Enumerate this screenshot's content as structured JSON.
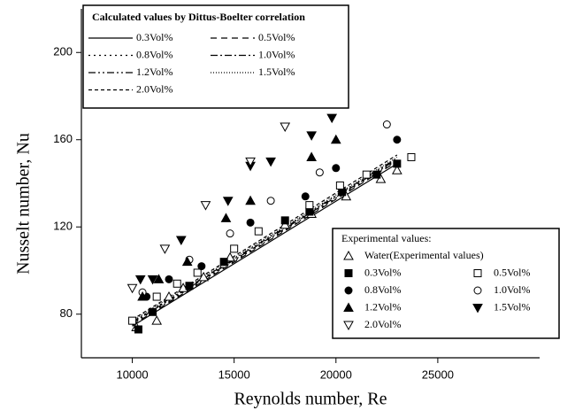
{
  "chart_data": {
    "type": "scatter",
    "x_label": "Reynolds number, Re",
    "y_label": "Nusselt number, Nu",
    "line_legend_title": "Calculated values by Dittus-Boelter correlation",
    "scatter_legend_title": "Experimental values:",
    "xlim": [
      7500,
      30000
    ],
    "ylim": [
      60,
      220
    ],
    "xticks": [
      10000,
      15000,
      20000,
      25000
    ],
    "yticks": [
      80,
      120,
      160,
      200
    ],
    "color": "#000000",
    "series": [
      {
        "name": "0.3Vol%",
        "kind": "line",
        "line_style": "solid",
        "x": [
          10000,
          23000
        ],
        "values": [
          74.5,
          149
        ]
      },
      {
        "name": "0.5Vol%",
        "kind": "line",
        "line_style": "dashed",
        "x": [
          10000,
          23000
        ],
        "values": [
          75,
          150
        ]
      },
      {
        "name": "0.8Vol%",
        "kind": "line",
        "line_style": "dotted",
        "x": [
          10000,
          23000
        ],
        "values": [
          75.5,
          150.5
        ]
      },
      {
        "name": "1.0Vol%",
        "kind": "line",
        "line_style": "dash-dot",
        "x": [
          10000,
          23000
        ],
        "values": [
          76,
          151
        ]
      },
      {
        "name": "1.2Vol%",
        "kind": "line",
        "line_style": "dash-dot-dot",
        "x": [
          10000,
          23000
        ],
        "values": [
          76.5,
          151.5
        ]
      },
      {
        "name": "1.5Vol%",
        "kind": "line",
        "line_style": "short-dot",
        "x": [
          10000,
          23000
        ],
        "values": [
          77,
          152
        ]
      },
      {
        "name": "2.0Vol%",
        "kind": "line",
        "line_style": "short-dash",
        "x": [
          10000,
          23000
        ],
        "values": [
          77.5,
          153
        ]
      },
      {
        "name": "Water(Experimental values)",
        "kind": "scatter",
        "marker": "triangle",
        "filled": false,
        "x": [
          10200,
          11200,
          11800,
          12500,
          13500,
          14800,
          17500,
          18800,
          20500,
          22200,
          23000
        ],
        "values": [
          74,
          77,
          88,
          92,
          97,
          106,
          121,
          126,
          134,
          142,
          146
        ]
      },
      {
        "name": "0.3Vol%",
        "kind": "scatter",
        "marker": "square",
        "filled": true,
        "x": [
          10300,
          11000,
          12800,
          14500,
          17500,
          18700,
          20300,
          22000,
          23000
        ],
        "values": [
          73,
          81,
          93,
          104,
          123,
          127,
          136,
          144,
          149
        ]
      },
      {
        "name": "0.5Vol%",
        "kind": "scatter",
        "marker": "square",
        "filled": false,
        "x": [
          10000,
          11200,
          12200,
          13200,
          15000,
          16200,
          18700,
          20200,
          21500,
          23700
        ],
        "values": [
          77,
          88,
          94,
          99,
          110,
          118,
          130,
          139,
          144,
          152
        ]
      },
      {
        "name": "0.8Vol%",
        "kind": "scatter",
        "marker": "circle",
        "filled": true,
        "x": [
          10700,
          11800,
          13400,
          15800,
          18500,
          20000,
          23000
        ],
        "values": [
          88,
          96,
          102,
          122,
          134,
          147,
          160
        ]
      },
      {
        "name": "1.0Vol%",
        "kind": "scatter",
        "marker": "circle",
        "filled": false,
        "x": [
          10500,
          12800,
          14800,
          16800,
          19200,
          22500
        ],
        "values": [
          90,
          105,
          117,
          132,
          145,
          167
        ]
      },
      {
        "name": "1.2Vol%",
        "kind": "scatter",
        "marker": "triangle",
        "filled": true,
        "x": [
          10500,
          11300,
          12700,
          14600,
          15800,
          18800,
          20000
        ],
        "values": [
          88,
          96,
          104,
          124,
          132,
          152,
          160
        ]
      },
      {
        "name": "1.5Vol%",
        "kind": "scatter",
        "marker": "triangle-down",
        "filled": true,
        "x": [
          10400,
          11000,
          12400,
          14700,
          15800,
          16800,
          18800,
          19800
        ],
        "values": [
          96,
          96,
          114,
          132,
          148,
          150,
          162,
          170
        ]
      },
      {
        "name": "2.0Vol%",
        "kind": "scatter",
        "marker": "triangle-down",
        "filled": false,
        "x": [
          10000,
          11600,
          13600,
          15800,
          17500
        ],
        "values": [
          92,
          110,
          130,
          150,
          166
        ]
      }
    ]
  }
}
